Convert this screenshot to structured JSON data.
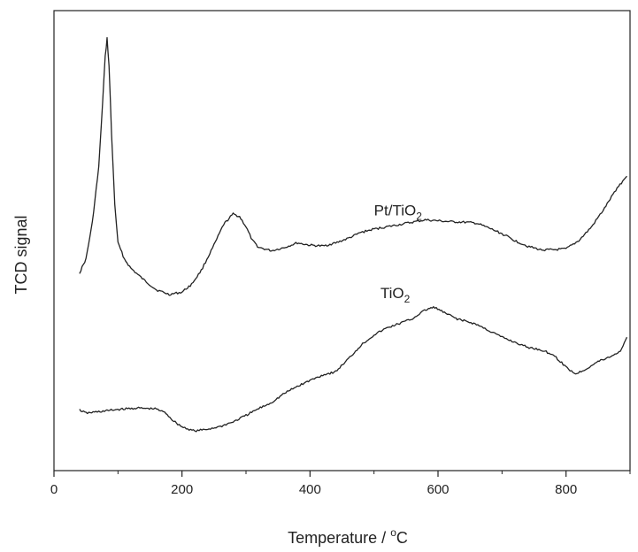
{
  "chart_data": {
    "type": "line",
    "title": "",
    "xlabel": {
      "prefix": "Temperature / ",
      "sup": "o",
      "suffix": "C"
    },
    "ylabel": "TCD signal",
    "xlim": [
      0,
      900
    ],
    "xticks": [
      0,
      200,
      400,
      600,
      800
    ],
    "ylim": [
      0,
      100
    ],
    "y_tick_labels": false,
    "grid": false,
    "legend": "none",
    "series": [
      {
        "label_main": "Pt/TiO",
        "label_sub": "2",
        "label_at": [
          500,
          55.5
        ],
        "color": "#222222",
        "points": [
          [
            40,
            43
          ],
          [
            50,
            46
          ],
          [
            60,
            54
          ],
          [
            70,
            66
          ],
          [
            76,
            80
          ],
          [
            80,
            90
          ],
          [
            83,
            94
          ],
          [
            86,
            88
          ],
          [
            90,
            73
          ],
          [
            95,
            58
          ],
          [
            100,
            49.5
          ],
          [
            110,
            46
          ],
          [
            120,
            44
          ],
          [
            140,
            41.5
          ],
          [
            160,
            39.3
          ],
          [
            180,
            38.3
          ],
          [
            200,
            38.8
          ],
          [
            215,
            40.5
          ],
          [
            230,
            43.5
          ],
          [
            250,
            49
          ],
          [
            265,
            53.5
          ],
          [
            280,
            55.8
          ],
          [
            290,
            55.2
          ],
          [
            300,
            53
          ],
          [
            310,
            50
          ],
          [
            320,
            48.5
          ],
          [
            340,
            47.8
          ],
          [
            360,
            48.5
          ],
          [
            380,
            49.5
          ],
          [
            400,
            49
          ],
          [
            420,
            48.8
          ],
          [
            440,
            49.5
          ],
          [
            460,
            50.5
          ],
          [
            480,
            51.8
          ],
          [
            500,
            52.5
          ],
          [
            520,
            53
          ],
          [
            540,
            53.5
          ],
          [
            560,
            54
          ],
          [
            580,
            54.5
          ],
          [
            600,
            54.3
          ],
          [
            620,
            54.1
          ],
          [
            640,
            54
          ],
          [
            660,
            53.8
          ],
          [
            680,
            52.7
          ],
          [
            700,
            51.5
          ],
          [
            720,
            50
          ],
          [
            740,
            48.8
          ],
          [
            760,
            48
          ],
          [
            780,
            48
          ],
          [
            800,
            48.2
          ],
          [
            820,
            50
          ],
          [
            840,
            53
          ],
          [
            860,
            57
          ],
          [
            880,
            61.5
          ],
          [
            895,
            64
          ]
        ]
      },
      {
        "label_main": "TiO",
        "label_sub": "2",
        "label_at": [
          510,
          37.5
        ],
        "color": "#222222",
        "points": [
          [
            40,
            13.2
          ],
          [
            50,
            12.5
          ],
          [
            70,
            12.8
          ],
          [
            100,
            13.3
          ],
          [
            130,
            13.6
          ],
          [
            160,
            13.4
          ],
          [
            175,
            12.5
          ],
          [
            185,
            11
          ],
          [
            200,
            9.5
          ],
          [
            220,
            8.6
          ],
          [
            240,
            9
          ],
          [
            260,
            9.6
          ],
          [
            280,
            10.6
          ],
          [
            300,
            12
          ],
          [
            320,
            13.5
          ],
          [
            340,
            14.8
          ],
          [
            360,
            16.8
          ],
          [
            380,
            18.3
          ],
          [
            400,
            19.6
          ],
          [
            420,
            20.8
          ],
          [
            440,
            21.5
          ],
          [
            460,
            24.3
          ],
          [
            480,
            27.3
          ],
          [
            500,
            29.5
          ],
          [
            520,
            31
          ],
          [
            540,
            32
          ],
          [
            560,
            33
          ],
          [
            575,
            34.5
          ],
          [
            585,
            35.2
          ],
          [
            595,
            35.5
          ],
          [
            610,
            34.3
          ],
          [
            630,
            33
          ],
          [
            660,
            31.8
          ],
          [
            700,
            29
          ],
          [
            740,
            26.8
          ],
          [
            760,
            26.3
          ],
          [
            780,
            25.2
          ],
          [
            800,
            22.5
          ],
          [
            815,
            21
          ],
          [
            830,
            22
          ],
          [
            850,
            23.7
          ],
          [
            870,
            24.8
          ],
          [
            885,
            26
          ],
          [
            895,
            29
          ]
        ]
      }
    ]
  }
}
